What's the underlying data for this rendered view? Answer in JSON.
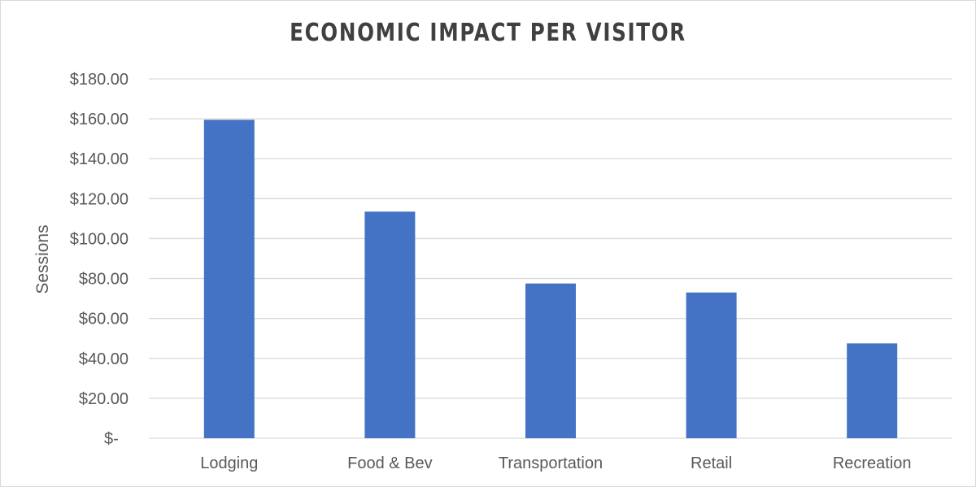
{
  "chart_data": {
    "type": "bar",
    "title": "ECONOMIC IMPACT PER VISITOR",
    "xlabel": "",
    "ylabel": "Sessions",
    "categories": [
      "Lodging",
      "Food & Bev",
      "Transportation",
      "Retail",
      "Recreation"
    ],
    "values": [
      159.5,
      113.5,
      77.5,
      73.0,
      47.5
    ],
    "ylim": [
      0,
      180
    ],
    "yticks": [
      0,
      20,
      40,
      60,
      80,
      100,
      120,
      140,
      160,
      180
    ],
    "ytick_labels": [
      "$-",
      "$20.00",
      "$40.00",
      "$60.00",
      "$80.00",
      "$100.00",
      "$120.00",
      "$140.00",
      "$160.00",
      "$180.00"
    ],
    "grid": true,
    "legend": "none",
    "bar_color": "#4472C4",
    "grid_color": "#D9D9D9"
  }
}
